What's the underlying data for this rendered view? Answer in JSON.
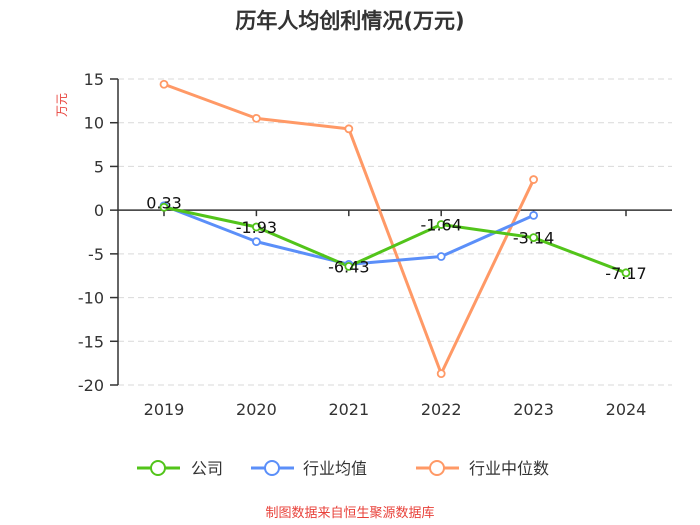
{
  "chart_data": {
    "type": "line",
    "title": "历年人均创利情况(万元)",
    "ylabel": "万元",
    "xlabel": "",
    "categories": [
      "2019",
      "2020",
      "2021",
      "2022",
      "2023",
      "2024"
    ],
    "yticks": [
      15,
      10,
      5,
      0,
      -5,
      -10,
      -15,
      -20
    ],
    "ylim": [
      -20,
      15
    ],
    "grid": true,
    "legend_position": "bottom",
    "series": [
      {
        "name": "公司",
        "color": "#52c41a",
        "values": [
          0.33,
          -1.93,
          -6.43,
          -1.64,
          -3.14,
          -7.17
        ],
        "labels": [
          "0.33",
          "-1.93",
          "-6.43",
          "-1.64",
          "-3.14",
          "-7.17"
        ]
      },
      {
        "name": "行业均值",
        "color": "#5b8ff9",
        "values": [
          0.5,
          -3.6,
          -6.2,
          -5.3,
          -0.6,
          null
        ]
      },
      {
        "name": "行业中位数",
        "color": "#ff9966",
        "values": [
          14.4,
          10.5,
          9.3,
          -18.7,
          3.5,
          null
        ]
      }
    ],
    "unit_color": "#e8413a",
    "source_note": "制图数据来自恒生聚源数据库",
    "source_color": "#e8413a"
  }
}
